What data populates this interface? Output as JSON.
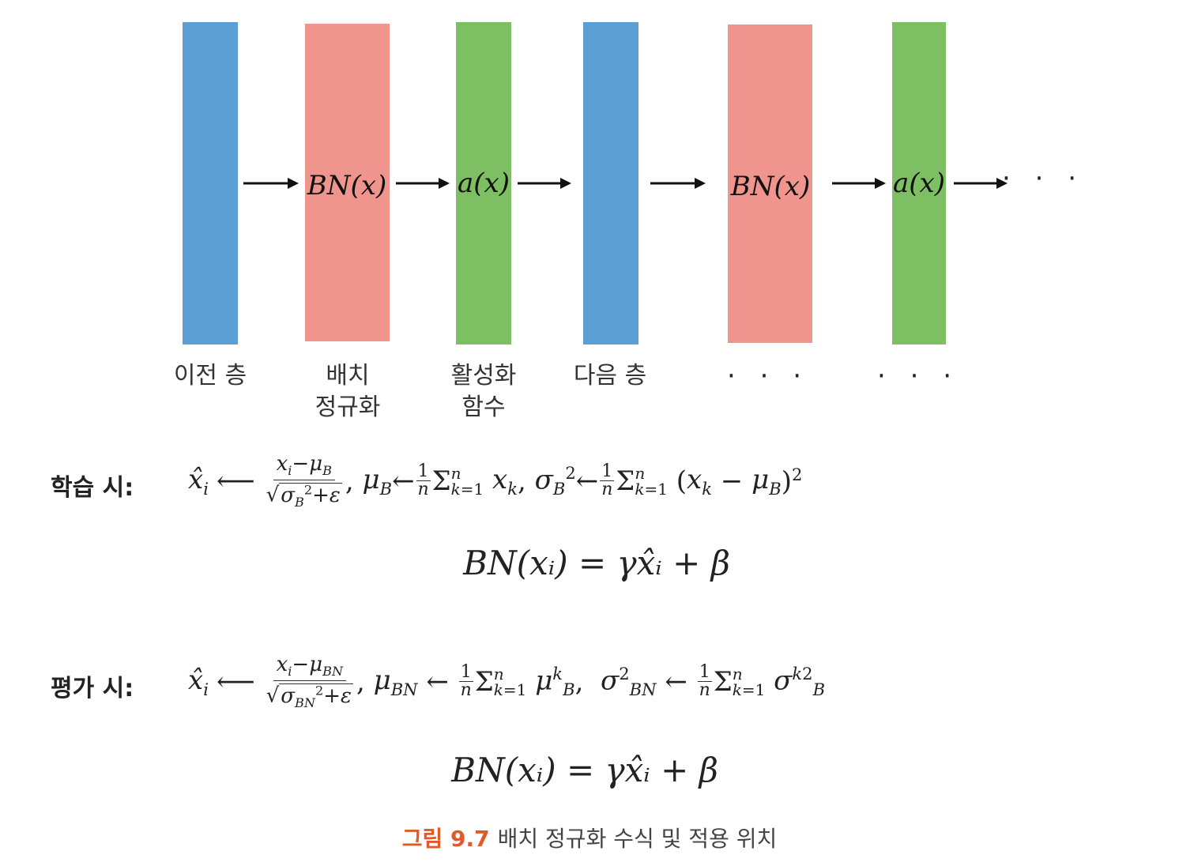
{
  "diagram": {
    "colors": {
      "layer": "#5b9fd4",
      "bn": "#f0948e",
      "act": "#7dbf62",
      "arrow": "#111111"
    },
    "blocks": [
      {
        "id": "prev",
        "kind": "layer",
        "label": ""
      },
      {
        "id": "bn1",
        "kind": "bn",
        "label": "BN(x)"
      },
      {
        "id": "act1",
        "kind": "act",
        "label": "a(x)"
      },
      {
        "id": "next",
        "kind": "layer",
        "label": ""
      },
      {
        "id": "bn2",
        "kind": "bn",
        "label": "BN(x)"
      },
      {
        "id": "act2",
        "kind": "act",
        "label": "a(x)"
      }
    ],
    "trailing_dots": "· · ·",
    "captions": {
      "prev": [
        "이전 층"
      ],
      "bn1": [
        "배치",
        "정규화"
      ],
      "act1": [
        "활성화",
        "함수"
      ],
      "next": [
        "다음 층"
      ],
      "bn2": "· · ·",
      "act2": "· · ·"
    }
  },
  "formulas": {
    "train_label": "학습 시:",
    "eval_label": "평가 시:",
    "train_equation": "BN(xᵢ) = γx̂ᵢ + β",
    "eval_equation": "BN(xᵢ) = γx̂ᵢ + β"
  },
  "caption": {
    "figure": "그림 9.7",
    "text": "배치 정규화 수식 및 적용 위치"
  }
}
